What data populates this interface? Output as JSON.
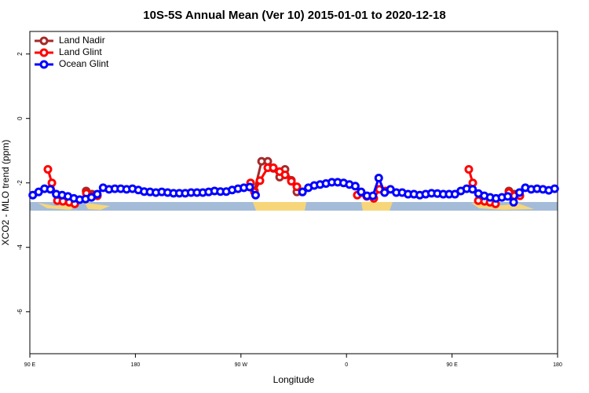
{
  "chart_data": {
    "type": "line",
    "title": "10S-5S Annual Mean (Ver 10)   2015-01-01 to 2020-12-18",
    "x_label": "Longitude",
    "y_label": "XCO2 - MLO trend (ppm)",
    "xlim": [
      90,
      540
    ],
    "ylim": [
      -7.3,
      2.7
    ],
    "xticks": [
      {
        "value": 90,
        "label": "90 E"
      },
      {
        "value": 180,
        "label": "180"
      },
      {
        "value": 270,
        "label": "90 W"
      },
      {
        "value": 360,
        "label": "0"
      },
      {
        "value": 450,
        "label": "90 E"
      },
      {
        "value": 540,
        "label": "180"
      }
    ],
    "yticks": [
      2,
      0,
      -2,
      -4,
      -6
    ],
    "legend": "top-left",
    "series": [
      {
        "name": "Land Nadir",
        "color": "#a52a2a",
        "x": [
          138,
          143,
          148,
          281.5,
          287.6,
          292.9,
          297.6,
          303,
          307.6,
          313,
          317.7,
          400,
          498.5,
          503.2
        ],
        "values": [
          -2.25,
          -2.35,
          null,
          -2.25,
          -1.33,
          -1.33,
          -1.55,
          -1.82,
          -1.58,
          -1.92,
          -2.28,
          null,
          -2.25,
          -2.35
        ]
      },
      {
        "name": "Land Glint",
        "color": "#ff0000",
        "x": [
          105.4,
          108.8,
          113.5,
          118.2,
          123.6,
          128.3,
          133,
          138.2,
          142.9,
          147.6,
          200,
          278.2,
          281.5,
          286.2,
          292.9,
          297.6,
          303,
          307.6,
          313,
          317.7,
          322.4,
          340,
          369.2,
          377.3,
          383.3,
          388,
          393.4,
          430,
          464.3,
          467.7,
          472.4,
          477.7,
          482.4,
          487.1,
          492,
          498.5,
          503.2,
          507.9
        ],
        "values": [
          -1.58,
          -2.0,
          -2.55,
          -2.57,
          -2.6,
          -2.65,
          null,
          -2.32,
          -2.4,
          -2.4,
          null,
          -2.0,
          -2.28,
          -1.93,
          -1.53,
          -1.53,
          -1.65,
          -1.75,
          -1.95,
          -2.12,
          -2.28,
          null,
          -2.38,
          -2.42,
          -2.48,
          -2.2,
          -2.25,
          null,
          -1.58,
          -2.0,
          -2.55,
          -2.57,
          -2.6,
          -2.65,
          null,
          -2.3,
          -2.4,
          -2.4
        ]
      },
      {
        "name": "Ocean Glint",
        "color": "#0000ff",
        "x": [
          92.5,
          97.5,
          102.5,
          107.5,
          112.5,
          117.5,
          122.5,
          127.5,
          132.5,
          137.5,
          142.5,
          147.5,
          152.5,
          157.5,
          162.5,
          167.5,
          172.5,
          177.5,
          182.5,
          187.5,
          192.5,
          197.5,
          202.5,
          207.5,
          212.5,
          217.5,
          222.5,
          227.5,
          232.5,
          237.5,
          242.5,
          247.5,
          252.5,
          257.5,
          262.5,
          267.5,
          272.5,
          277.5,
          282.5,
          287.5,
          292.5,
          297.5,
          302.5,
          307.5,
          312.5,
          317.5,
          322.5,
          327.5,
          332.5,
          337.5,
          342.5,
          347.5,
          352.5,
          357.5,
          362.5,
          367.5,
          372.5,
          377.5,
          382.5,
          387.5,
          392.5,
          397.5,
          402.5,
          407.5,
          412.5,
          417.5,
          422.5,
          427.5,
          432.5,
          437.5,
          442.5,
          447.5,
          452.5,
          457.5,
          462.5,
          467.5,
          472.5,
          477.5,
          482.5,
          487.5,
          492.5,
          497.5,
          502.5,
          507.5,
          512.5,
          517.5,
          522.5,
          527.5,
          532.5,
          537.5
        ],
        "values": [
          -2.38,
          -2.28,
          -2.18,
          -2.2,
          -2.35,
          -2.38,
          -2.42,
          -2.48,
          -2.52,
          -2.5,
          -2.45,
          -2.35,
          -2.15,
          -2.2,
          -2.18,
          -2.18,
          -2.2,
          -2.18,
          -2.22,
          -2.27,
          -2.28,
          -2.3,
          -2.28,
          -2.3,
          -2.32,
          -2.32,
          -2.32,
          -2.3,
          -2.3,
          -2.3,
          -2.28,
          -2.25,
          -2.27,
          -2.27,
          -2.22,
          -2.18,
          -2.15,
          -2.13,
          -2.38,
          null,
          null,
          null,
          null,
          null,
          null,
          null,
          -2.28,
          -2.15,
          -2.08,
          -2.05,
          -2.02,
          -1.98,
          -1.98,
          -2.0,
          -2.05,
          -2.1,
          -2.28,
          -2.4,
          -2.4,
          -1.85,
          -2.3,
          -2.2,
          -2.3,
          -2.3,
          -2.35,
          -2.35,
          -2.38,
          -2.35,
          -2.32,
          -2.33,
          -2.35,
          -2.35,
          -2.35,
          -2.25,
          -2.18,
          -2.2,
          -2.33,
          -2.4,
          -2.45,
          -2.48,
          -2.45,
          -2.42,
          -2.6,
          -2.3,
          -2.15,
          -2.2,
          -2.18,
          -2.2,
          -2.23,
          -2.18
        ]
      }
    ]
  }
}
